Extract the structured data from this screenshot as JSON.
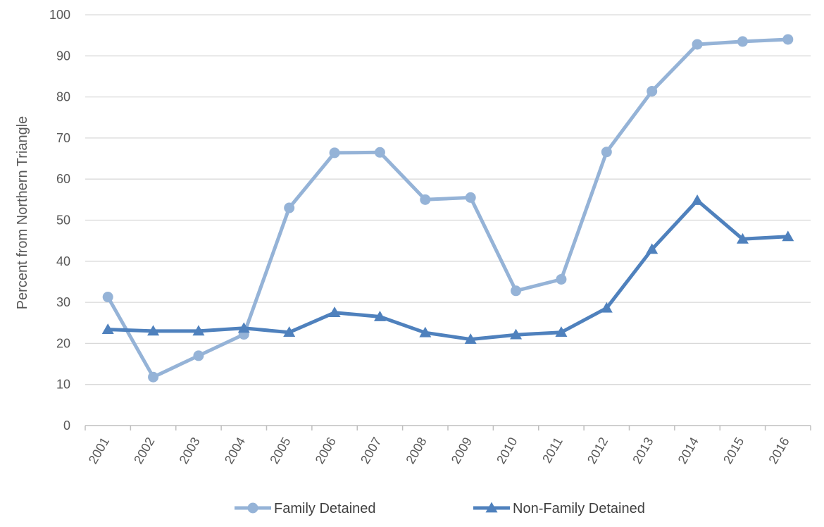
{
  "chart_data": {
    "type": "line",
    "ylabel": "Percent from Northern Triangle",
    "xlabel": "",
    "ylim": [
      0,
      100
    ],
    "yticks": [
      0,
      10,
      20,
      30,
      40,
      50,
      60,
      70,
      80,
      90,
      100
    ],
    "grid": true,
    "legend_position": "bottom",
    "categories": [
      "2001",
      "2002",
      "2003",
      "2004",
      "2005",
      "2006",
      "2007",
      "2008",
      "2009",
      "2010",
      "2011",
      "2012",
      "2013",
      "2014",
      "2015",
      "2016"
    ],
    "series": [
      {
        "name": "Family Detained",
        "color": "#95b3d7",
        "marker": "circle",
        "values": [
          31.3,
          11.8,
          17.0,
          22.2,
          53.0,
          66.4,
          66.5,
          55.0,
          55.5,
          32.8,
          35.6,
          66.6,
          81.4,
          92.8,
          93.5,
          94.0
        ]
      },
      {
        "name": "Non-Family Detained",
        "color": "#4f81bd",
        "marker": "triangle",
        "values": [
          23.4,
          23.0,
          23.0,
          23.7,
          22.7,
          27.5,
          26.5,
          22.6,
          21.0,
          22.1,
          22.7,
          28.6,
          42.9,
          54.8,
          45.4,
          46.0
        ]
      }
    ]
  }
}
